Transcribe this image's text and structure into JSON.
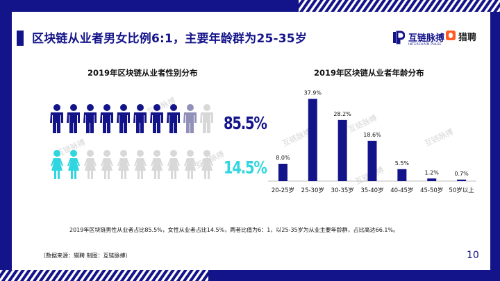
{
  "page": {
    "title": "区块链从业者男女比例6:1，主要年龄群为25-35岁",
    "page_number": "10",
    "summary": "2019年区块链男性从业者占比85.5%，女性从业者占比14.5%，两者比值为6：1，以25-35岁为从业主要年龄群，占比高达66.1%。",
    "source": "（数据来源：猎聘   制图：互链脉搏）",
    "colors": {
      "navy": "#14148a",
      "cyan": "#2fd6e0",
      "grey": "#d8d8d8"
    }
  },
  "logos": {
    "hulian_name": "互链脉搏",
    "hulian_sub": "INTERCHAIN PULSE",
    "liepin_name": "猎聘"
  },
  "watermark_text": "互链脉搏",
  "chart_data": [
    {
      "type": "pictograph",
      "title": "2019年区块链从业者性别分布",
      "series": [
        {
          "name": "男",
          "value": 85.5,
          "label": "85.5%",
          "color": "#14148a",
          "icon": "male-figure-icon"
        },
        {
          "name": "女",
          "value": 14.5,
          "label": "14.5%",
          "color": "#2fd6e0",
          "icon": "female-figure-icon"
        }
      ],
      "icon_count": 10
    },
    {
      "type": "bar",
      "title": "2019年区块链从业者年龄分布",
      "categories": [
        "20-25岁",
        "25-30岁",
        "30-35岁",
        "35-40岁",
        "40-45岁",
        "45-50岁",
        "50岁以上"
      ],
      "values": [
        8.0,
        37.9,
        28.2,
        18.6,
        5.5,
        1.2,
        0.7
      ],
      "labels": [
        "8.0%",
        "37.9%",
        "28.2%",
        "18.6%",
        "5.5%",
        "1.2%",
        "0.7%"
      ],
      "ylim": [
        0,
        40
      ],
      "color": "#14148a",
      "grid": false
    }
  ]
}
